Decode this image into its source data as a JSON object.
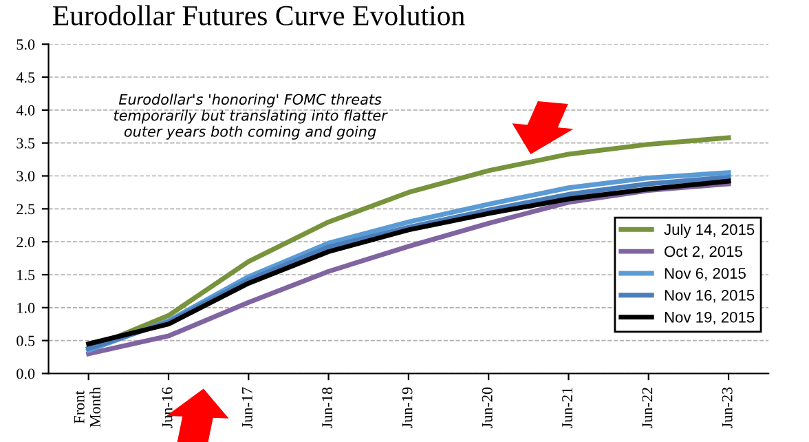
{
  "chart_data": {
    "type": "line",
    "title": "Eurodollar Futures Curve Evolution",
    "categories": [
      "Front\nMonth",
      "Jun-16",
      "Jun-17",
      "Jun-18",
      "Jun-19",
      "Jun-20",
      "Jun-21",
      "Jun-22",
      "Jun-23"
    ],
    "series": [
      {
        "name": "July 14, 2015",
        "color": "#77933c",
        "values": [
          0.38,
          0.88,
          1.7,
          2.3,
          2.75,
          3.08,
          3.33,
          3.48,
          3.58
        ]
      },
      {
        "name": "Oct 2, 2015",
        "color": "#8064a2",
        "values": [
          0.3,
          0.57,
          1.08,
          1.55,
          1.93,
          2.28,
          2.6,
          2.78,
          2.88
        ]
      },
      {
        "name": "Nov 6, 2015",
        "color": "#5b9bd5",
        "values": [
          0.35,
          0.8,
          1.47,
          1.98,
          2.3,
          2.57,
          2.82,
          2.97,
          3.05
        ]
      },
      {
        "name": "Nov 16, 2015",
        "color": "#4a7ebb",
        "values": [
          0.38,
          0.78,
          1.42,
          1.92,
          2.22,
          2.48,
          2.72,
          2.88,
          2.98
        ]
      },
      {
        "name": "Nov 19, 2015",
        "color": "#000000",
        "values": [
          0.45,
          0.75,
          1.37,
          1.85,
          2.18,
          2.43,
          2.65,
          2.8,
          2.92
        ]
      }
    ],
    "ylim": [
      0,
      5
    ],
    "yticks": [
      {
        "value": 0,
        "label": "0.0"
      },
      0.5,
      {
        "value": 1,
        "label": "1.0"
      },
      1.5,
      {
        "value": 2,
        "label": "2.0"
      },
      2.5,
      {
        "value": 3,
        "label": "3.0"
      },
      3.5,
      {
        "value": 4,
        "label": "4.0"
      },
      4.5,
      {
        "value": 5,
        "label": "5.0"
      }
    ],
    "grid": "y",
    "legend": "right",
    "marker": "none",
    "line_style": "solid",
    "annotations": [
      "Eurodollar's 'honoring' FOMC threats\ntemporarily but translating into flatter\nouter years both coming and going"
    ]
  }
}
